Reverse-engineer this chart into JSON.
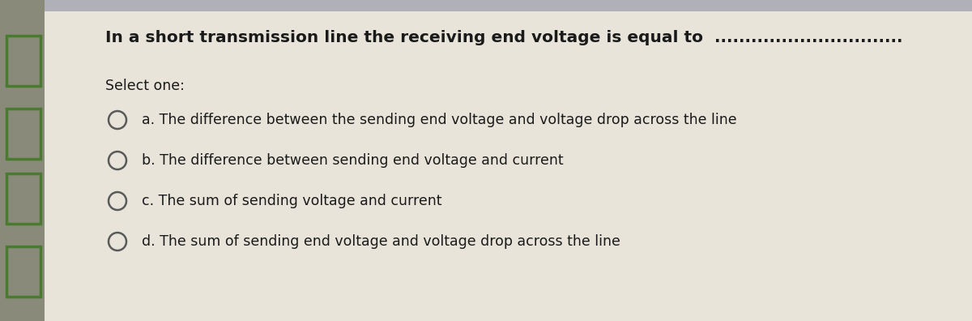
{
  "title": "In a short transmission line the receiving end voltage is equal to  ...............................",
  "select_one": "Select one:",
  "options": [
    "a. The difference between the sending end voltage and voltage drop across the line",
    "b. The difference between sending end voltage and current",
    "c. The sum of sending voltage and current",
    "d. The sum of sending end voltage and voltage drop across the line"
  ],
  "bg_color": "#c8c4bc",
  "content_bg_color": "#e8e4da",
  "left_strip_color": "#8a8a7a",
  "green_rect_color": "#4a7a30",
  "title_fontsize": 14.5,
  "select_fontsize": 12.5,
  "option_fontsize": 12.5,
  "text_color": "#1a1a1a",
  "circle_color": "#5a5a5a",
  "top_bar_color": "#b0b0b8"
}
